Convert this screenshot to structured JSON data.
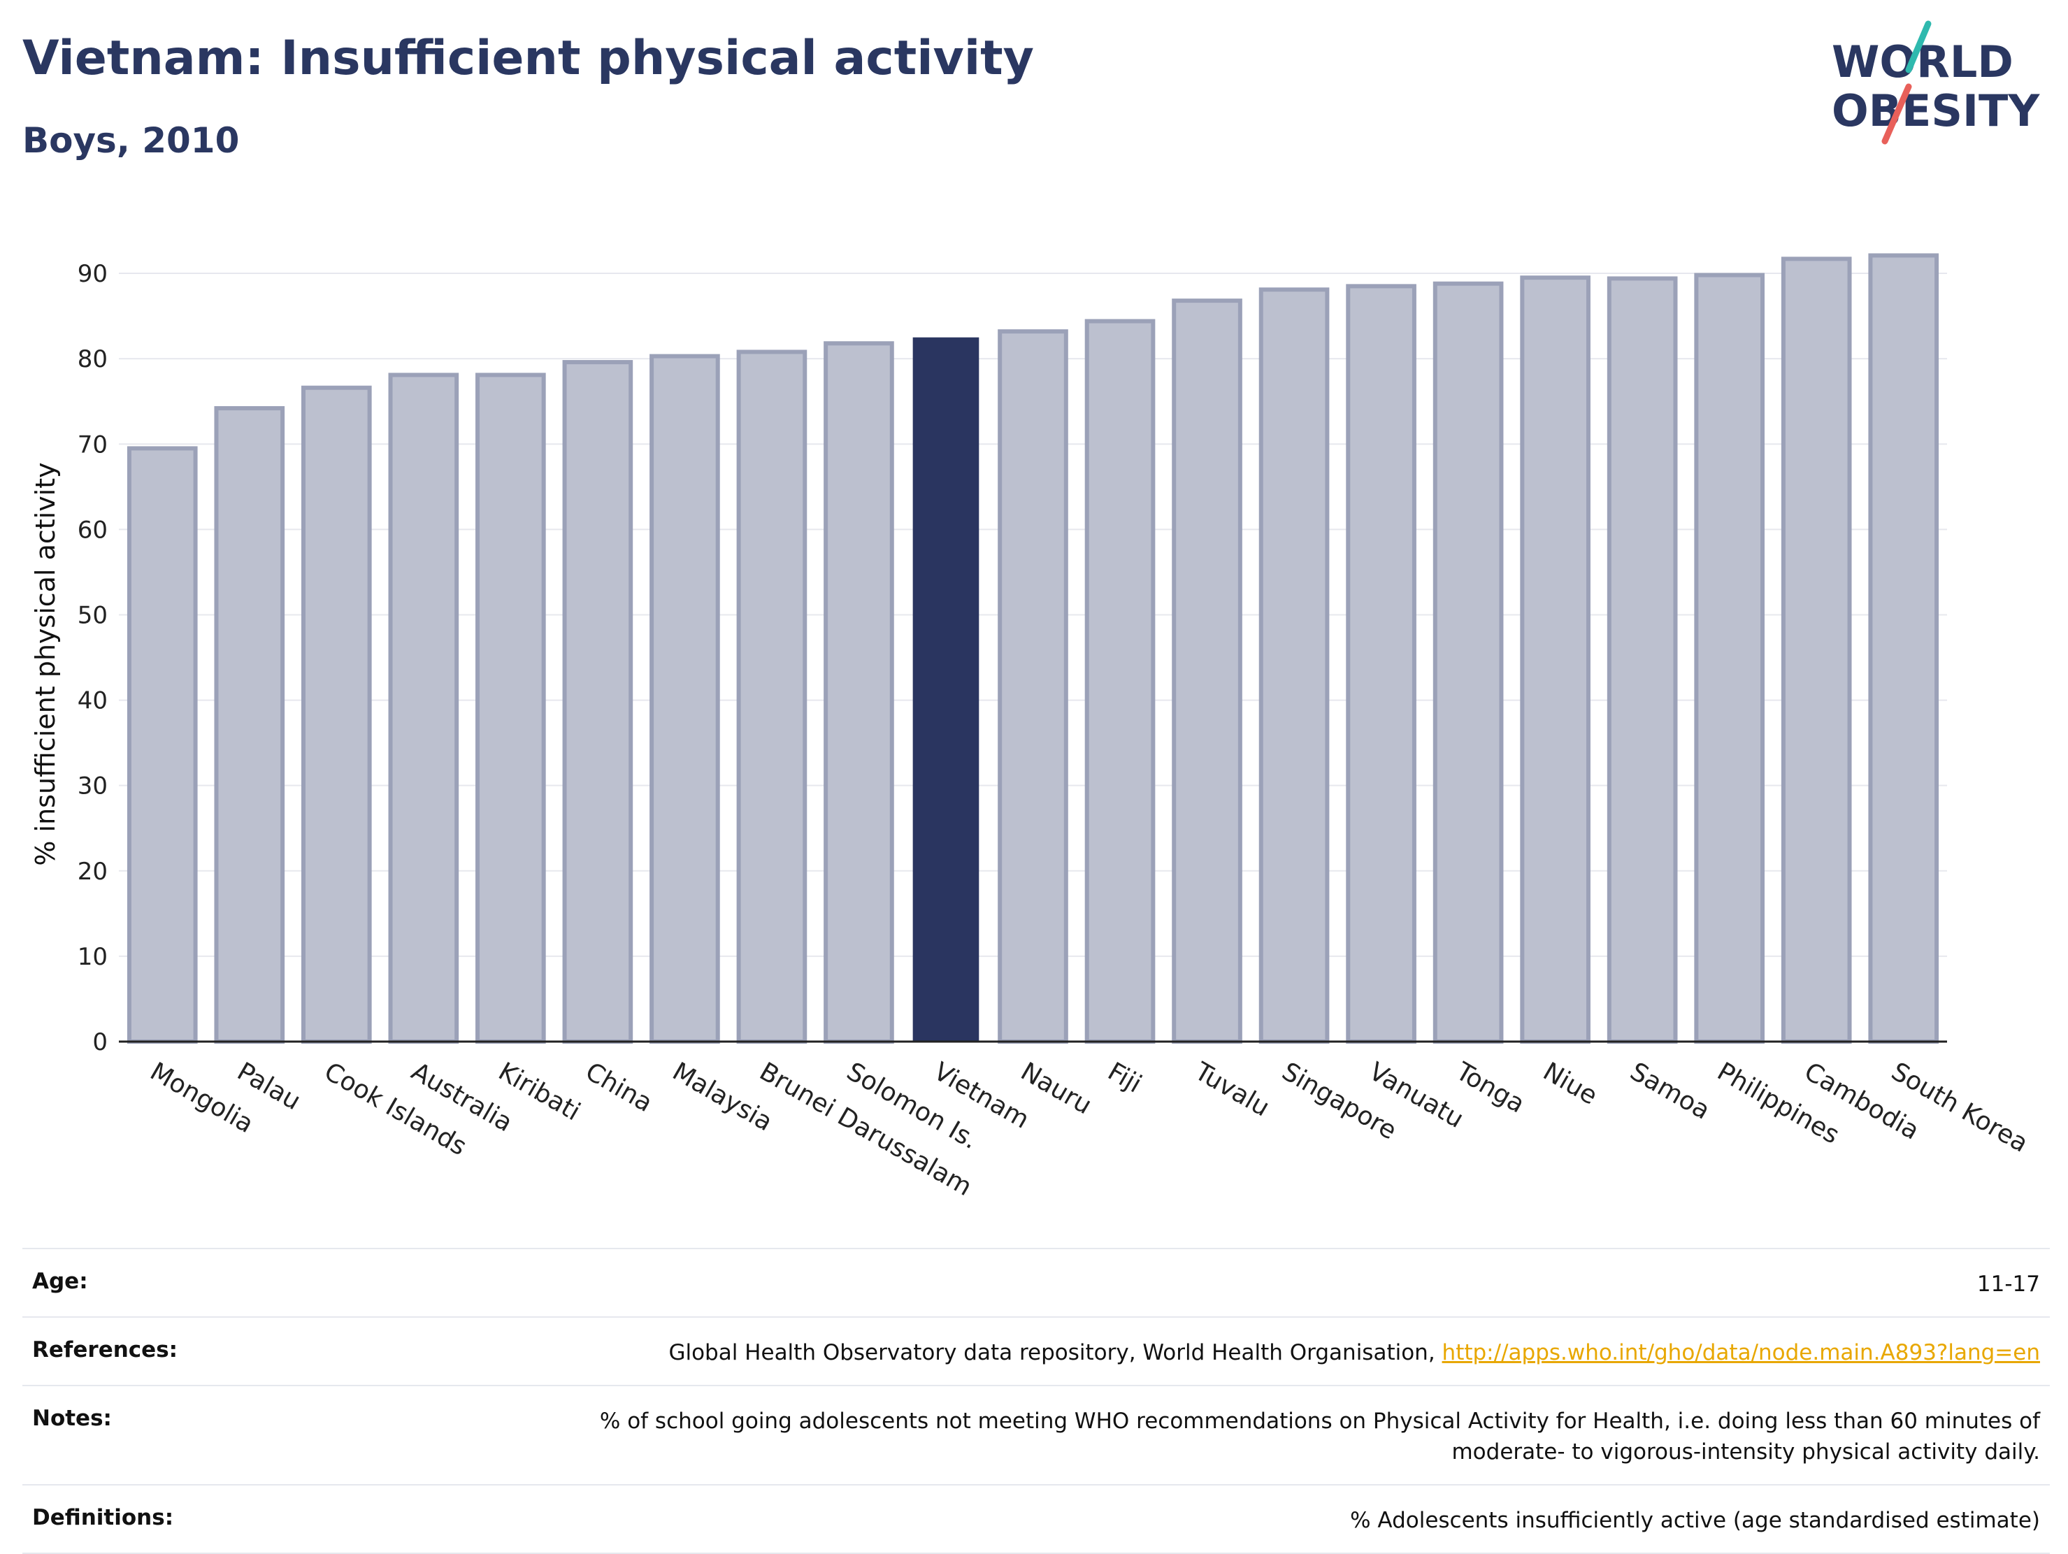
{
  "header": {
    "title": "Vietnam: Insufficient physical activity",
    "subtitle": "Boys, 2010"
  },
  "logo": {
    "line1": "WORLD",
    "line2": "OBESITY"
  },
  "chart_data": {
    "type": "bar",
    "ylabel": "% insufficient physical activity",
    "xlabel": "",
    "ylim": [
      0,
      95
    ],
    "yticks": [
      0,
      10,
      20,
      30,
      40,
      50,
      60,
      70,
      80,
      90
    ],
    "grid": true,
    "categories": [
      "Mongolia",
      "Palau",
      "Cook Islands",
      "Australia",
      "Kiribati",
      "China",
      "Malaysia",
      "Brunei Darussalam",
      "Solomon Is.",
      "Vietnam",
      "Nauru",
      "Fiji",
      "Tuvalu",
      "Singapore",
      "Vanuatu",
      "Tonga",
      "Niue",
      "Samoa",
      "Philippines",
      "Cambodia",
      "South Korea"
    ],
    "values": [
      69.5,
      74.2,
      76.6,
      78.1,
      78.1,
      79.6,
      80.3,
      80.8,
      81.8,
      82.5,
      83.2,
      84.4,
      86.8,
      88.1,
      88.5,
      88.8,
      89.5,
      89.4,
      89.8,
      91.7,
      92.1
    ],
    "highlight": "Vietnam",
    "colors": {
      "bar": "#bcc0cf",
      "bar_border": "#9ba1b8",
      "highlight": "#2a3560",
      "grid": "#e7e8ee",
      "axis": "#222222"
    }
  },
  "info": {
    "age_label": "Age:",
    "age_value": "11-17",
    "references_label": "References:",
    "references_text": "Global Health Observatory data repository, World Health Organisation, ",
    "references_link": "http://apps.who.int/gho/data/node.main.A893?lang=en",
    "notes_label": "Notes:",
    "notes_text": "% of school going adolescents not meeting WHO recommendations on Physical Activity for Health, i.e. doing less than 60 minutes of moderate- to vigorous-intensity physical activity daily.",
    "definitions_label": "Definitions:",
    "definitions_text": "% Adolescents insufficiently active (age standardised estimate)"
  }
}
